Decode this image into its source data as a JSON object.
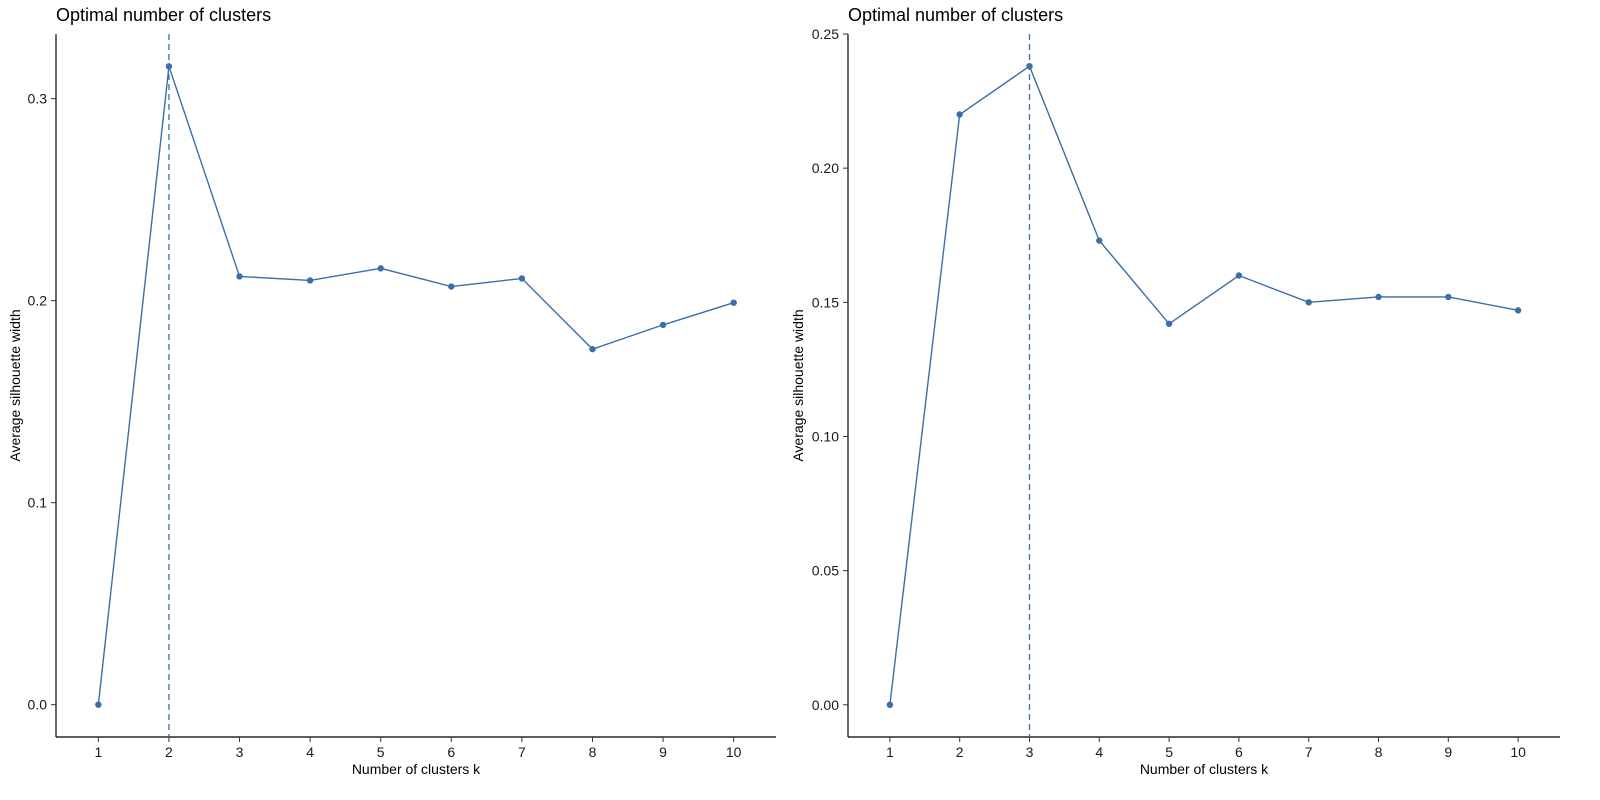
{
  "chart_data": [
    {
      "type": "line",
      "title": "Optimal number of clusters",
      "xlabel": "Number of clusters k",
      "ylabel": "Average silhouette width",
      "x": [
        1,
        2,
        3,
        4,
        5,
        6,
        7,
        8,
        9,
        10
      ],
      "xtick_labels": [
        "1",
        "2",
        "3",
        "4",
        "5",
        "6",
        "7",
        "8",
        "9",
        "10"
      ],
      "ylim": [
        -0.016,
        0.332
      ],
      "yticks": [
        0.0,
        0.1,
        0.2,
        0.3
      ],
      "ytick_labels": [
        "0.0",
        "0.1",
        "0.2",
        "0.3"
      ],
      "series": [
        {
          "values": [
            0.0,
            0.316,
            0.212,
            0.21,
            0.216,
            0.207,
            0.211,
            0.176,
            0.188,
            0.199
          ]
        }
      ],
      "optimal_k": 2,
      "grid": false,
      "color": "#3a6fa8"
    },
    {
      "type": "line",
      "title": "Optimal number of clusters",
      "xlabel": "Number of clusters k",
      "ylabel": "Average silhouette width",
      "x": [
        1,
        2,
        3,
        4,
        5,
        6,
        7,
        8,
        9,
        10
      ],
      "xtick_labels": [
        "1",
        "2",
        "3",
        "4",
        "5",
        "6",
        "7",
        "8",
        "9",
        "10"
      ],
      "ylim": [
        -0.012,
        0.25
      ],
      "yticks": [
        0.0,
        0.05,
        0.1,
        0.15,
        0.2,
        0.25
      ],
      "ytick_labels": [
        "0.00",
        "0.05",
        "0.10",
        "0.15",
        "0.20",
        "0.25"
      ],
      "series": [
        {
          "values": [
            0.0,
            0.22,
            0.238,
            0.173,
            0.142,
            0.16,
            0.15,
            0.152,
            0.152,
            0.147
          ]
        }
      ],
      "optimal_k": 3,
      "grid": false,
      "color": "#3a6fa8"
    }
  ]
}
